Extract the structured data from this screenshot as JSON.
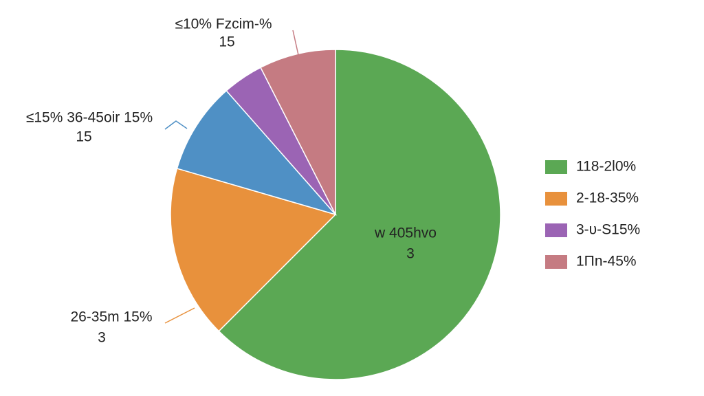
{
  "chart_data": {
    "type": "pie",
    "categories": [
      "118-2l0%",
      "2-18-35%",
      null,
      "3-υ-S15%",
      "1Πn-45%"
    ],
    "values": [
      62.5,
      17,
      9,
      4,
      7.5
    ],
    "colors": [
      "#5ba854",
      "#e8913c",
      "#4f90c5",
      "#9b64b4",
      "#c57b82"
    ],
    "slice_labels": [
      [
        "w 405hvo",
        "3"
      ],
      [
        "26-35m 15%",
        "3"
      ],
      [
        "≤15% 36-45oir 15%",
        "15"
      ],
      null,
      [
        "≤10% Fzcim-%",
        "15"
      ]
    ],
    "legend": "right"
  }
}
